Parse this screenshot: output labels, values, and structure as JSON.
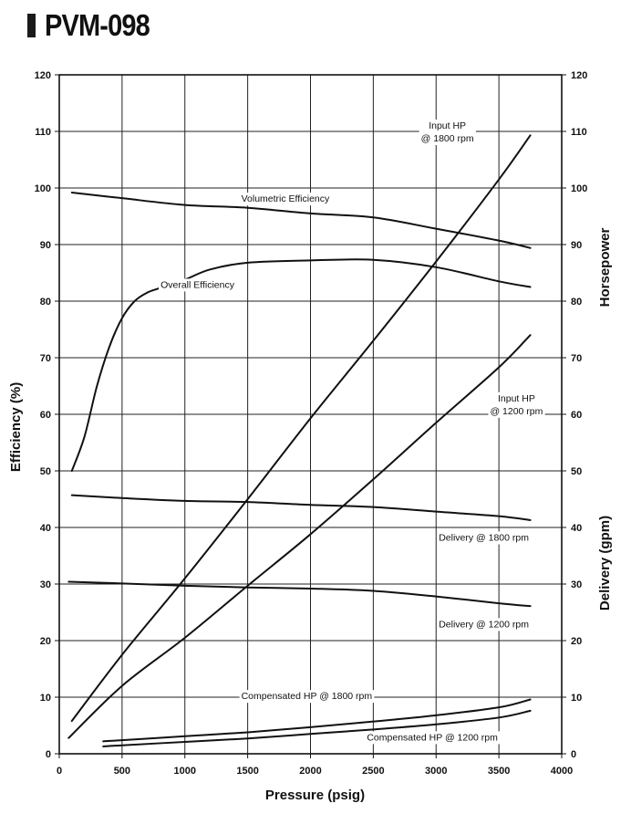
{
  "page": {
    "title": "PVM-098"
  },
  "chart_data": {
    "type": "line",
    "xlabel": "Pressure (psig)",
    "ylabel_left": "Efficiency (%)",
    "ylabel_right_top": "Horsepower",
    "ylabel_right_bottom": "Delivery (gpm)",
    "xlim": [
      0,
      4000
    ],
    "ylim": [
      0,
      120
    ],
    "x_ticks": [
      "0",
      "500",
      "1000",
      "1500",
      "2000",
      "2500",
      "3000",
      "3500",
      "4000"
    ],
    "y_ticks_left": [
      "0",
      "10",
      "20",
      "30",
      "40",
      "50",
      "60",
      "70",
      "80",
      "90",
      "100",
      "110",
      "120"
    ],
    "y_ticks_right": [
      "0",
      "10",
      "20",
      "30",
      "40",
      "50",
      "60",
      "70",
      "80",
      "90",
      "100",
      "110",
      "120"
    ],
    "grid": true,
    "series": [
      {
        "name": "Volumetric Efficiency",
        "x": [
          100,
          500,
          1000,
          1500,
          2000,
          2500,
          3000,
          3500,
          3750
        ],
        "y": [
          99.2,
          98.2,
          97,
          96.5,
          95.5,
          94.8,
          92.8,
          90.7,
          89.4
        ]
      },
      {
        "name": "Overall Efficiency",
        "x": [
          100,
          200,
          300,
          400,
          500,
          600,
          700,
          800,
          1000,
          1200,
          1500,
          2000,
          2500,
          3000,
          3500,
          3750
        ],
        "y": [
          50,
          56,
          65,
          72,
          77,
          80,
          81.5,
          82.3,
          83.8,
          85.6,
          86.8,
          87.2,
          87.3,
          86,
          83.5,
          82.5
        ]
      },
      {
        "name": "Input HP @ 1800 rpm",
        "x": [
          100,
          500,
          1000,
          1500,
          2000,
          2500,
          3000,
          3500,
          3750
        ],
        "y": [
          5.8,
          17.5,
          31,
          45,
          59.3,
          73,
          87,
          101.5,
          109.3
        ]
      },
      {
        "name": "Input HP @ 1200 rpm",
        "x": [
          75,
          500,
          1000,
          1500,
          2000,
          2500,
          3000,
          3500,
          3750
        ],
        "y": [
          2.8,
          12,
          20.5,
          29.7,
          38.8,
          48.5,
          58.5,
          68.3,
          74
        ]
      },
      {
        "name": "Delivery @ 1800 rpm",
        "x": [
          100,
          500,
          1000,
          1500,
          2000,
          2500,
          3000,
          3500,
          3750
        ],
        "y": [
          45.7,
          45.2,
          44.7,
          44.5,
          44,
          43.6,
          42.8,
          42,
          41.3
        ]
      },
      {
        "name": "Delivery @ 1200 rpm",
        "x": [
          75,
          500,
          1000,
          1500,
          2000,
          2500,
          3000,
          3500,
          3750
        ],
        "y": [
          30.4,
          30.1,
          29.7,
          29.4,
          29.2,
          28.8,
          27.8,
          26.6,
          26.1
        ]
      },
      {
        "name": "Compensated HP @ 1800 rpm",
        "x": [
          350,
          500,
          1000,
          1500,
          2000,
          2500,
          3000,
          3500,
          3750
        ],
        "y": [
          2.2,
          2.4,
          3.1,
          3.8,
          4.7,
          5.7,
          6.8,
          8.2,
          9.6
        ]
      },
      {
        "name": "Compensated HP @ 1200 rpm",
        "x": [
          350,
          500,
          1000,
          1500,
          2000,
          2500,
          3000,
          3500,
          3750
        ],
        "y": [
          1.3,
          1.5,
          2.1,
          2.7,
          3.5,
          4.3,
          5.2,
          6.4,
          7.6
        ]
      }
    ],
    "annotations": [
      {
        "lines": [
          "Volumetric Efficiency"
        ],
        "x": 1800,
        "y": 98.2
      },
      {
        "lines": [
          "Overall Efficiency"
        ],
        "x": 1100,
        "y": 83
      },
      {
        "lines": [
          "Input HP",
          "@ 1800 rpm"
        ],
        "x": 3090,
        "y": 110
      },
      {
        "lines": [
          "Input HP",
          "@ 1200 rpm"
        ],
        "x": 3640,
        "y": 61.8
      },
      {
        "lines": [
          "Delivery @ 1800 rpm"
        ],
        "x": 3380,
        "y": 38.3
      },
      {
        "lines": [
          "Delivery @ 1200 rpm"
        ],
        "x": 3380,
        "y": 23
      },
      {
        "lines": [
          "Compensated HP @ 1800 rpm"
        ],
        "x": 1970,
        "y": 10.3
      },
      {
        "lines": [
          "Compensated HP @ 1200 rpm"
        ],
        "x": 2970,
        "y": 3
      }
    ],
    "line_color": "#111111",
    "grid_color": "#222222"
  }
}
